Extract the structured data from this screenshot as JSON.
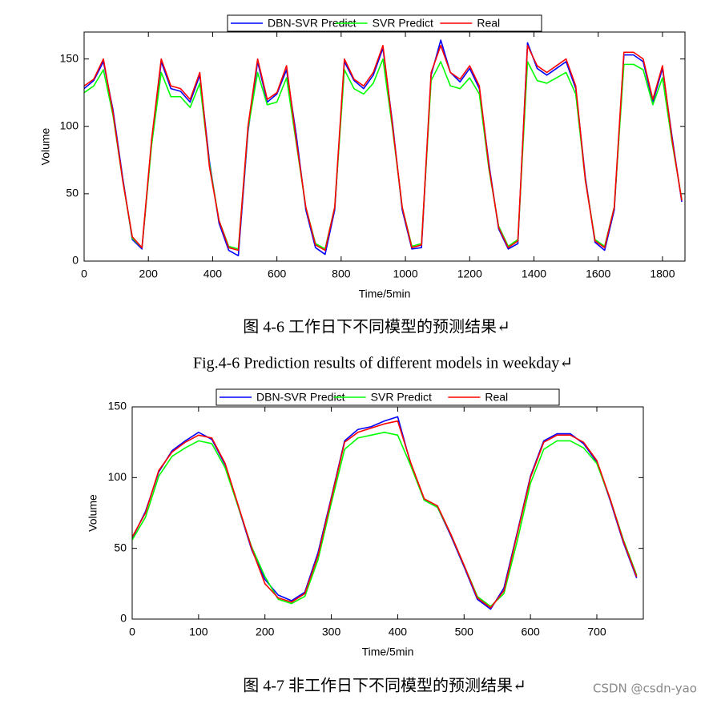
{
  "chart_data": [
    {
      "type": "line",
      "xlabel": "Time/5min",
      "ylabel": "Volume",
      "legend": "upper center",
      "x": [
        0,
        30,
        60,
        90,
        120,
        150,
        180,
        210,
        240,
        270,
        300,
        330,
        360,
        390,
        420,
        450,
        480,
        510,
        540,
        570,
        600,
        630,
        660,
        690,
        720,
        750,
        780,
        810,
        840,
        870,
        900,
        930,
        960,
        990,
        1020,
        1050,
        1080,
        1110,
        1140,
        1170,
        1200,
        1230,
        1260,
        1290,
        1320,
        1350,
        1380,
        1410,
        1440,
        1470,
        1500,
        1530,
        1560,
        1590,
        1620,
        1650,
        1680,
        1710,
        1740,
        1770,
        1800,
        1830,
        1860
      ],
      "xlim": [
        0,
        1870
      ],
      "xticks": [
        0,
        200,
        400,
        600,
        800,
        1000,
        1200,
        1400,
        1600,
        1800
      ],
      "ylim": [
        0,
        170
      ],
      "yticks": [
        0,
        50,
        100,
        150
      ],
      "series": [
        {
          "name": "DBN-SVR Predict",
          "color": "#0000ff",
          "values": [
            128,
            134,
            148,
            112,
            62,
            16,
            9,
            88,
            148,
            128,
            126,
            118,
            138,
            74,
            28,
            8,
            4,
            96,
            148,
            118,
            124,
            142,
            94,
            38,
            10,
            5,
            38,
            148,
            134,
            128,
            138,
            158,
            102,
            38,
            9,
            10,
            138,
            164,
            140,
            133,
            143,
            128,
            72,
            24,
            9,
            13,
            162,
            143,
            138,
            143,
            148,
            128,
            62,
            14,
            8,
            38,
            153,
            153,
            148,
            118,
            143,
            92,
            44
          ]
        },
        {
          "name": "SVR Predict",
          "color": "#00ff00",
          "values": [
            125,
            130,
            142,
            108,
            60,
            17,
            10,
            86,
            140,
            122,
            122,
            114,
            132,
            72,
            30,
            11,
            9,
            98,
            140,
            116,
            118,
            136,
            88,
            40,
            13,
            9,
            40,
            142,
            128,
            124,
            132,
            150,
            98,
            40,
            11,
            13,
            134,
            148,
            130,
            128,
            136,
            124,
            68,
            26,
            11,
            16,
            148,
            134,
            132,
            136,
            140,
            124,
            60,
            16,
            11,
            40,
            146,
            146,
            142,
            116,
            136,
            88,
            46
          ]
        },
        {
          "name": "Real",
          "color": "#ff0000",
          "values": [
            130,
            135,
            150,
            110,
            60,
            18,
            10,
            90,
            150,
            130,
            128,
            120,
            140,
            70,
            30,
            10,
            8,
            100,
            150,
            120,
            125,
            145,
            90,
            40,
            12,
            8,
            40,
            150,
            135,
            130,
            140,
            160,
            100,
            40,
            10,
            12,
            140,
            160,
            140,
            135,
            145,
            130,
            70,
            25,
            10,
            15,
            160,
            145,
            140,
            145,
            150,
            130,
            60,
            15,
            10,
            40,
            155,
            155,
            150,
            120,
            145,
            90,
            45
          ]
        }
      ]
    },
    {
      "type": "line",
      "xlabel": "Time/5min",
      "ylabel": "Volume",
      "legend": "upper center",
      "x": [
        0,
        20,
        40,
        60,
        80,
        100,
        120,
        140,
        160,
        180,
        200,
        220,
        240,
        260,
        280,
        300,
        320,
        340,
        360,
        380,
        400,
        420,
        440,
        460,
        480,
        500,
        520,
        540,
        560,
        580,
        600,
        620,
        640,
        660,
        680,
        700,
        720,
        740,
        760
      ],
      "xlim": [
        0,
        770
      ],
      "xticks": [
        0,
        100,
        200,
        300,
        400,
        500,
        600,
        700
      ],
      "ylim": [
        0,
        150
      ],
      "yticks": [
        0,
        50,
        100,
        150
      ],
      "series": [
        {
          "name": "DBN-SVR Predict",
          "color": "#0000ff",
          "values": [
            57,
            76,
            104,
            119,
            126,
            132,
            127,
            109,
            79,
            49,
            28,
            17,
            13,
            19,
            47,
            86,
            126,
            134,
            136,
            140,
            143,
            109,
            84,
            79,
            59,
            37,
            14,
            7,
            22,
            61,
            101,
            126,
            131,
            131,
            124,
            111,
            84,
            54,
            29
          ]
        },
        {
          "name": "SVR Predict",
          "color": "#00ff00",
          "values": [
            56,
            72,
            101,
            115,
            121,
            126,
            124,
            107,
            79,
            51,
            30,
            14,
            11,
            16,
            42,
            82,
            120,
            128,
            130,
            132,
            130,
            108,
            84,
            79,
            60,
            38,
            16,
            9,
            18,
            55,
            96,
            120,
            126,
            126,
            121,
            110,
            85,
            56,
            31
          ]
        },
        {
          "name": "Real",
          "color": "#ff0000",
          "values": [
            58,
            75,
            105,
            118,
            125,
            130,
            128,
            110,
            80,
            50,
            25,
            15,
            12,
            18,
            45,
            85,
            125,
            132,
            135,
            138,
            140,
            110,
            85,
            80,
            60,
            38,
            15,
            8,
            20,
            60,
            100,
            125,
            130,
            130,
            125,
            112,
            85,
            55,
            30
          ]
        }
      ]
    }
  ],
  "captions": [
    "图 4-6 工作日下不同模型的预测结果↵",
    "Fig.4-6 Prediction results of different models in weekday↵",
    "图 4-7 非工作日下不同模型的预测结果↵"
  ],
  "watermark": "CSDN @csdn-yao"
}
